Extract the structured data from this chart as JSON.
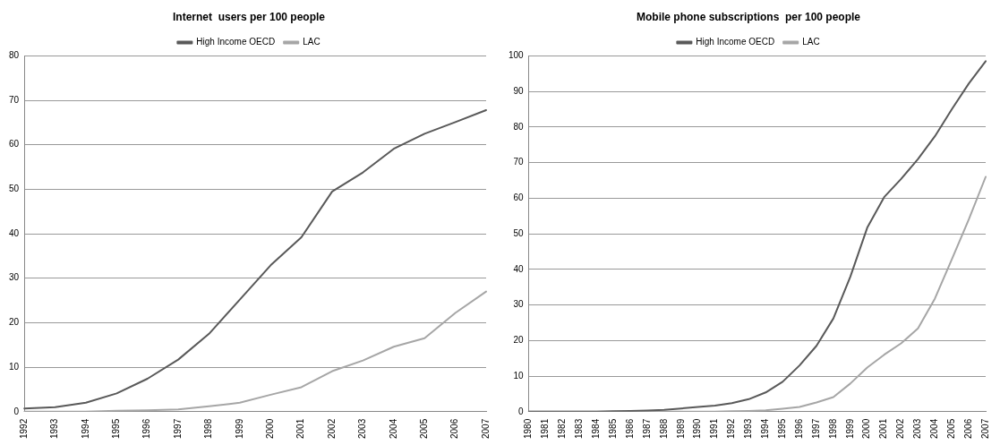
{
  "chart_data": [
    {
      "type": "line",
      "title": "Internet  users per 100 people",
      "categories": [
        "1992",
        "1993",
        "1994",
        "1995",
        "1996",
        "1997",
        "1998",
        "1999",
        "2000",
        "2001",
        "2002",
        "2003",
        "2004",
        "2005",
        "2006",
        "2007"
      ],
      "series": [
        {
          "name": "High Income OECD",
          "color": "#595959",
          "values": [
            0.7,
            1.0,
            2.0,
            4.1,
            7.4,
            11.7,
            17.5,
            25.2,
            32.9,
            39.2,
            49.5,
            53.8,
            59.1,
            62.5,
            65.1,
            67.8
          ]
        },
        {
          "name": "LAC",
          "color": "#a6a6a6",
          "values": [
            0,
            0,
            0,
            0.2,
            0.3,
            0.5,
            1.2,
            2.0,
            3.8,
            5.5,
            9.1,
            11.5,
            14.6,
            16.5,
            22.2,
            27.0
          ]
        }
      ],
      "ylim": [
        0,
        80
      ],
      "yticks": [
        0,
        10,
        20,
        30,
        40,
        50,
        60,
        70,
        80
      ],
      "grid": "y",
      "legend": "top"
    },
    {
      "type": "line",
      "title": "Mobile phone subscriptions  per 100 people",
      "categories": [
        "1980",
        "1981",
        "1982",
        "1983",
        "1984",
        "1985",
        "1986",
        "1987",
        "1988",
        "1989",
        "1990",
        "1991",
        "1992",
        "1993",
        "1994",
        "1995",
        "1996",
        "1997",
        "1998",
        "1999",
        "2000",
        "2001",
        "2002",
        "2003",
        "2004",
        "2005",
        "2006",
        "2007"
      ],
      "series": [
        {
          "name": "High Income OECD",
          "color": "#595959",
          "values": [
            0,
            0,
            0,
            0,
            0,
            0.1,
            0.2,
            0.3,
            0.5,
            0.9,
            1.3,
            1.7,
            2.4,
            3.5,
            5.4,
            8.4,
            13.0,
            18.5,
            26.2,
            37.9,
            51.7,
            60.3,
            65.4,
            71.0,
            77.4,
            85.0,
            92.2,
            98.5
          ]
        },
        {
          "name": "LAC",
          "color": "#a6a6a6",
          "values": [
            0,
            0,
            0,
            0,
            0,
            0,
            0,
            0,
            0,
            0,
            0,
            0,
            0.1,
            0.2,
            0.4,
            0.8,
            1.3,
            2.6,
            4.1,
            7.9,
            12.4,
            16.0,
            19.2,
            23.4,
            31.8,
            42.8,
            54.0,
            66.0
          ]
        }
      ],
      "ylim": [
        0,
        100
      ],
      "yticks": [
        0,
        10,
        20,
        30,
        40,
        50,
        60,
        70,
        80,
        90,
        100
      ],
      "grid": "y",
      "legend": "top"
    }
  ]
}
